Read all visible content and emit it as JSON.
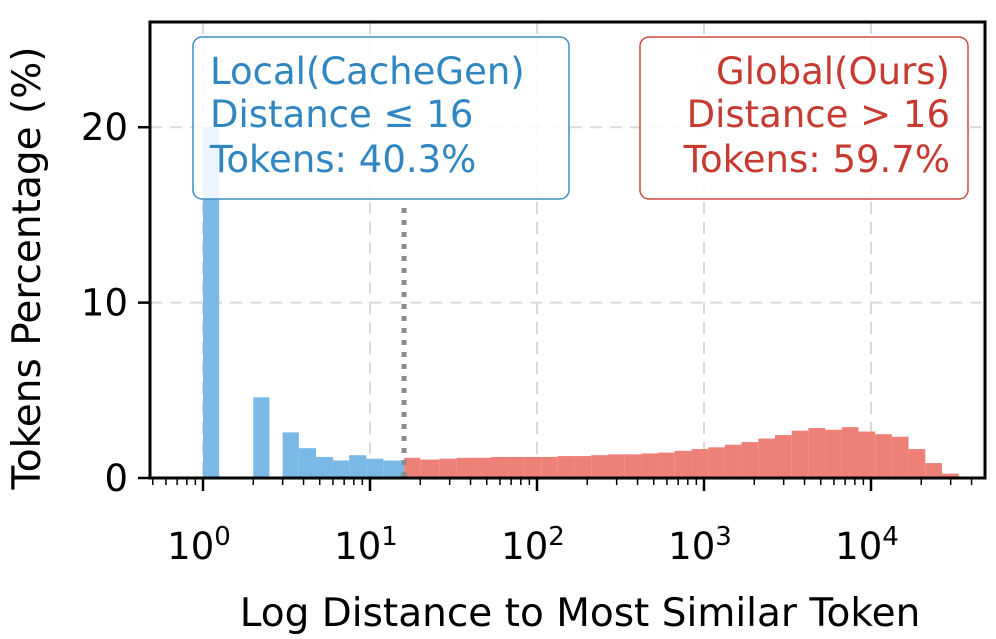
{
  "chart_data": {
    "type": "bar",
    "xlabel": "Log Distance to Most Similar Token",
    "ylabel": "Tokens Percentage (%)",
    "x_scale": "log",
    "xlim": [
      0.3,
      60000
    ],
    "ylim": [
      0,
      26
    ],
    "grid": true,
    "x_ticks": [
      {
        "base": "10",
        "exp": "0",
        "value": 1
      },
      {
        "base": "10",
        "exp": "1",
        "value": 10
      },
      {
        "base": "10",
        "exp": "2",
        "value": 100
      },
      {
        "base": "10",
        "exp": "3",
        "value": 1000
      },
      {
        "base": "10",
        "exp": "4",
        "value": 10000
      }
    ],
    "y_ticks": [
      {
        "label": "0",
        "value": 0
      },
      {
        "label": "10",
        "value": 10
      },
      {
        "label": "20",
        "value": 20
      }
    ],
    "threshold": 16,
    "series": [
      {
        "name": "Local(CacheGen)",
        "color": "#7ab8e6",
        "bins": [
          [
            1.0,
            1.25,
            20.0
          ],
          [
            2.0,
            2.5,
            4.6
          ],
          [
            3.0,
            3.75,
            2.6
          ],
          [
            3.75,
            4.75,
            1.7
          ],
          [
            4.75,
            6.0,
            1.2
          ],
          [
            6.0,
            7.5,
            1.0
          ],
          [
            7.5,
            9.5,
            1.3
          ],
          [
            9.5,
            12.0,
            1.1
          ],
          [
            12.0,
            16.0,
            1.0
          ]
        ]
      },
      {
        "name": "Global(Ours)",
        "color": "#ee8177",
        "bins": [
          [
            16,
            20,
            1.15
          ],
          [
            20,
            26,
            1.05
          ],
          [
            26,
            33,
            1.1
          ],
          [
            33,
            42,
            1.15
          ],
          [
            42,
            53,
            1.15
          ],
          [
            53,
            67,
            1.2
          ],
          [
            67,
            84,
            1.2
          ],
          [
            84,
            106,
            1.2
          ],
          [
            106,
            133,
            1.2
          ],
          [
            133,
            168,
            1.25
          ],
          [
            168,
            211,
            1.25
          ],
          [
            211,
            266,
            1.3
          ],
          [
            266,
            335,
            1.35
          ],
          [
            335,
            422,
            1.35
          ],
          [
            422,
            531,
            1.4
          ],
          [
            531,
            668,
            1.45
          ],
          [
            668,
            841,
            1.55
          ],
          [
            841,
            1059,
            1.65
          ],
          [
            1059,
            1334,
            1.75
          ],
          [
            1334,
            1679,
            1.9
          ],
          [
            1679,
            2114,
            2.05
          ],
          [
            2114,
            2661,
            2.25
          ],
          [
            2661,
            3350,
            2.45
          ],
          [
            3350,
            4217,
            2.7
          ],
          [
            4217,
            5309,
            2.85
          ],
          [
            5309,
            6683,
            2.75
          ],
          [
            6683,
            8413,
            2.9
          ],
          [
            8413,
            10592,
            2.65
          ],
          [
            10592,
            13335,
            2.5
          ],
          [
            13335,
            16788,
            2.35
          ],
          [
            16788,
            21135,
            1.65
          ],
          [
            21135,
            26607,
            0.85
          ],
          [
            26607,
            33497,
            0.25
          ]
        ]
      }
    ],
    "annotations": [
      {
        "series": "Local(CacheGen)",
        "lines": [
          "Local(CacheGen)",
          "Distance ≤ 16",
          "Tokens: 40.3%"
        ],
        "color": "#2f86c0",
        "border": "#3d8fc6"
      },
      {
        "series": "Global(Ours)",
        "lines": [
          "Global(Ours)",
          "Distance > 16",
          "Tokens: 59.7%"
        ],
        "color": "#c63a30",
        "border": "#cc4a40"
      }
    ]
  }
}
